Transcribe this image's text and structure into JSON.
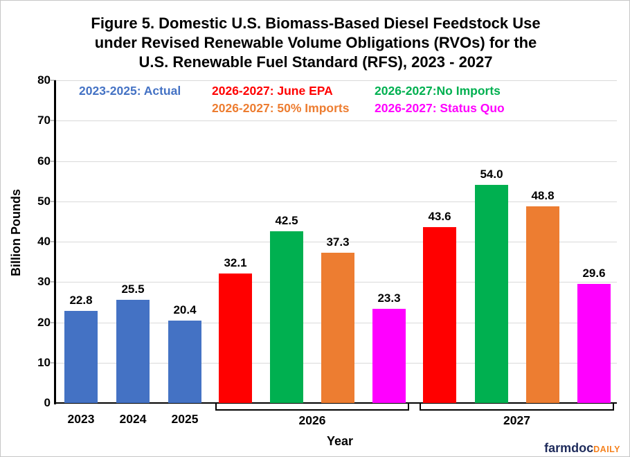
{
  "page": {
    "background": "#FFFFFF",
    "border_color": "#C6C6C6"
  },
  "chart_data": {
    "type": "bar",
    "title": "Figure 5. Domestic U.S. Biomass-Based Diesel Feedstock Use under Revised Renewable Volume Obligations (RVOs) for the U.S. Renewable Fuel Standard (RFS), 2023 - 2027",
    "title_lines": [
      "Figure 5. Domestic U.S. Biomass-Based Diesel Feedstock Use",
      "under Revised Renewable Volume Obligations (RVOs) for the",
      "U.S. Renewable Fuel Standard (RFS), 2023 - 2027"
    ],
    "xlabel": "Year",
    "ylabel": "Billion Pounds",
    "ylim": [
      0,
      80
    ],
    "yticks": [
      0,
      10,
      20,
      30,
      40,
      50,
      60,
      70,
      80
    ],
    "grid": "horizontal",
    "legend_position": "top-inside",
    "legend": [
      {
        "label": "2023-2025: Actual",
        "color": "#4472C4"
      },
      {
        "label": "2026-2027: June EPA",
        "color": "#FF0000"
      },
      {
        "label": "2026-2027:No Imports",
        "color": "#00B050"
      },
      {
        "label": "2026-2027: 50% Imports",
        "color": "#ED7D31"
      },
      {
        "label": "2026-2027: Status Quo",
        "color": "#FF00FF"
      }
    ],
    "x_axis": {
      "single_categories": [
        "2023",
        "2024",
        "2025"
      ],
      "bracket_groups": [
        {
          "label": "2026",
          "bar_count": 4
        },
        {
          "label": "2027",
          "bar_count": 4
        }
      ]
    },
    "bars": [
      {
        "category": "2023",
        "series": "Actual",
        "value": 22.8,
        "label": "22.8",
        "color": "#4472C4"
      },
      {
        "category": "2024",
        "series": "Actual",
        "value": 25.5,
        "label": "25.5",
        "color": "#4472C4"
      },
      {
        "category": "2025",
        "series": "Actual",
        "value": 20.4,
        "label": "20.4",
        "color": "#4472C4"
      },
      {
        "category": "2026",
        "series": "June EPA",
        "value": 32.1,
        "label": "32.1",
        "color": "#FF0000"
      },
      {
        "category": "2026",
        "series": "No Imports",
        "value": 42.5,
        "label": "42.5",
        "color": "#00B050"
      },
      {
        "category": "2026",
        "series": "50% Imports",
        "value": 37.3,
        "label": "37.3",
        "color": "#ED7D31"
      },
      {
        "category": "2026",
        "series": "Status Quo",
        "value": 23.3,
        "label": "23.3",
        "color": "#FF00FF"
      },
      {
        "category": "2027",
        "series": "June EPA",
        "value": 43.6,
        "label": "43.6",
        "color": "#FF0000"
      },
      {
        "category": "2027",
        "series": "No Imports",
        "value": 54.0,
        "label": "54.0",
        "color": "#00B050"
      },
      {
        "category": "2027",
        "series": "50% Imports",
        "value": 48.8,
        "label": "48.8",
        "color": "#ED7D31"
      },
      {
        "category": "2027",
        "series": "Status Quo",
        "value": 29.6,
        "label": "29.6",
        "color": "#FF00FF"
      }
    ],
    "colors": {
      "gridline": "#D9D9D9",
      "tick": "#BFBFBF",
      "axis": "#000000"
    }
  },
  "footer": {
    "logo_farmdoc": "farmdoc",
    "logo_daily": "DAILY",
    "farmdoc_color": "#1F2C5C",
    "daily_color": "#F5821F"
  }
}
